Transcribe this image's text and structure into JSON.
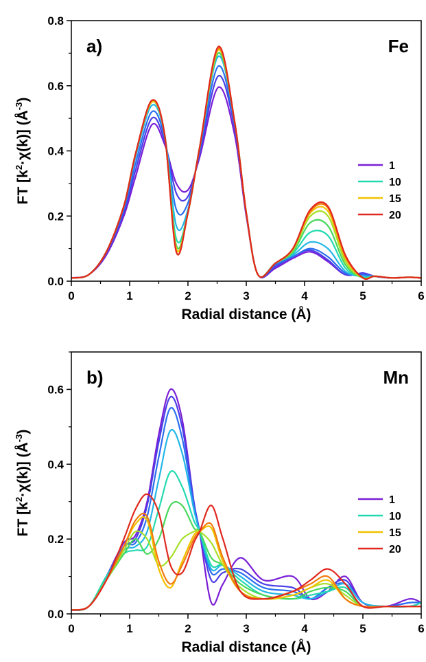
{
  "chart_data": [
    {
      "type": "line",
      "panel_label": "a)",
      "element_label": "Fe",
      "xlabel": "Radial distance (Å)",
      "ylabel_parts": [
        "FT [k",
        "2",
        "·χ(k)] (Å",
        "-3",
        ")"
      ],
      "xlim": [
        0,
        6
      ],
      "ylim": [
        0,
        0.8
      ],
      "x_ticks": [
        0,
        1,
        2,
        3,
        4,
        5,
        6
      ],
      "x_tick_labels": [
        "0",
        "1",
        "2",
        "3",
        "4",
        "5",
        "6"
      ],
      "y_ticks": [
        0.0,
        0.2,
        0.4,
        0.6,
        0.8
      ],
      "y_tick_labels": [
        "0.0",
        "0.2",
        "0.4",
        "0.6",
        "0.8"
      ],
      "grid": false,
      "legend_position": "right",
      "legend": [
        {
          "label": "1",
          "color": "#7a1fd6"
        },
        {
          "label": "10",
          "color": "#21d9b0"
        },
        {
          "label": "15",
          "color": "#f2c200"
        },
        {
          "label": "20",
          "color": "#e0281e"
        }
      ],
      "x": [
        0,
        0.3,
        0.6,
        0.9,
        1.1,
        1.38,
        1.6,
        1.8,
        2.0,
        2.2,
        2.52,
        2.8,
        3.0,
        3.2,
        3.5,
        3.8,
        4.1,
        4.4,
        4.7,
        5.0,
        5.2,
        5.5,
        5.8,
        6.0
      ],
      "series": [
        {
          "name": "1",
          "color": "#7a1fd6",
          "values": [
            0.01,
            0.02,
            0.08,
            0.2,
            0.32,
            0.48,
            0.42,
            0.3,
            0.28,
            0.38,
            0.595,
            0.45,
            0.2,
            0.02,
            0.04,
            0.07,
            0.09,
            0.06,
            0.02,
            0.025,
            0.015,
            0.01,
            0.012,
            0.01
          ]
        },
        {
          "color": "#4a3ee6",
          "values": [
            0.01,
            0.02,
            0.085,
            0.21,
            0.34,
            0.5,
            0.43,
            0.27,
            0.26,
            0.39,
            0.63,
            0.47,
            0.21,
            0.02,
            0.045,
            0.075,
            0.095,
            0.065,
            0.02,
            0.025,
            0.015,
            0.01,
            0.012,
            0.01
          ]
        },
        {
          "color": "#2a6ff0",
          "values": [
            0.01,
            0.02,
            0.09,
            0.22,
            0.36,
            0.52,
            0.44,
            0.22,
            0.24,
            0.4,
            0.66,
            0.48,
            0.21,
            0.02,
            0.05,
            0.075,
            0.1,
            0.075,
            0.025,
            0.02,
            0.015,
            0.01,
            0.012,
            0.01
          ]
        },
        {
          "color": "#22b6e6",
          "values": [
            0.01,
            0.02,
            0.09,
            0.23,
            0.38,
            0.54,
            0.45,
            0.17,
            0.22,
            0.41,
            0.69,
            0.49,
            0.21,
            0.02,
            0.055,
            0.08,
            0.12,
            0.1,
            0.03,
            0.015,
            0.015,
            0.01,
            0.012,
            0.01
          ]
        },
        {
          "name": "10",
          "color": "#21d9b0",
          "values": [
            0.01,
            0.02,
            0.09,
            0.23,
            0.39,
            0.55,
            0.45,
            0.13,
            0.21,
            0.41,
            0.7,
            0.49,
            0.21,
            0.02,
            0.055,
            0.085,
            0.15,
            0.14,
            0.04,
            0.012,
            0.015,
            0.01,
            0.012,
            0.01
          ]
        },
        {
          "color": "#49d85c",
          "values": [
            0.01,
            0.02,
            0.09,
            0.23,
            0.39,
            0.55,
            0.45,
            0.11,
            0.21,
            0.41,
            0.7,
            0.49,
            0.21,
            0.02,
            0.055,
            0.09,
            0.18,
            0.17,
            0.05,
            0.01,
            0.015,
            0.01,
            0.012,
            0.01
          ]
        },
        {
          "color": "#a6e02a",
          "values": [
            0.01,
            0.02,
            0.09,
            0.23,
            0.39,
            0.55,
            0.45,
            0.1,
            0.21,
            0.41,
            0.71,
            0.49,
            0.21,
            0.02,
            0.055,
            0.095,
            0.2,
            0.2,
            0.06,
            0.01,
            0.015,
            0.01,
            0.012,
            0.01
          ]
        },
        {
          "name": "15",
          "color": "#f2c200",
          "values": [
            0.01,
            0.02,
            0.09,
            0.23,
            0.39,
            0.55,
            0.45,
            0.1,
            0.21,
            0.41,
            0.71,
            0.49,
            0.21,
            0.02,
            0.055,
            0.1,
            0.21,
            0.215,
            0.07,
            0.01,
            0.015,
            0.01,
            0.012,
            0.01
          ]
        },
        {
          "color": "#f27a10",
          "values": [
            0.01,
            0.02,
            0.09,
            0.23,
            0.39,
            0.555,
            0.45,
            0.09,
            0.21,
            0.41,
            0.715,
            0.49,
            0.21,
            0.02,
            0.055,
            0.1,
            0.215,
            0.225,
            0.075,
            0.01,
            0.015,
            0.01,
            0.012,
            0.01
          ]
        },
        {
          "name": "20",
          "color": "#e0281e",
          "values": [
            0.01,
            0.02,
            0.09,
            0.23,
            0.39,
            0.555,
            0.45,
            0.09,
            0.21,
            0.41,
            0.72,
            0.49,
            0.21,
            0.02,
            0.055,
            0.1,
            0.22,
            0.23,
            0.08,
            0.01,
            0.015,
            0.01,
            0.012,
            0.01
          ]
        }
      ]
    },
    {
      "type": "line",
      "panel_label": "b)",
      "element_label": "Mn",
      "xlabel": "Radial distance (Å)",
      "ylabel_parts": [
        "FT [k",
        "2",
        "·χ(k)] (Å",
        "-3",
        ")"
      ],
      "xlim": [
        0,
        6
      ],
      "ylim": [
        0,
        0.7
      ],
      "x_ticks": [
        0,
        1,
        2,
        3,
        4,
        5,
        6
      ],
      "x_tick_labels": [
        "0",
        "1",
        "2",
        "3",
        "4",
        "5",
        "6"
      ],
      "y_ticks": [
        0.0,
        0.2,
        0.4,
        0.6
      ],
      "y_tick_labels": [
        "0.0",
        "0.2",
        "0.4",
        "0.6"
      ],
      "grid": false,
      "legend_position": "right",
      "legend": [
        {
          "label": "1",
          "color": "#7a1fd6"
        },
        {
          "label": "10",
          "color": "#21d9b0"
        },
        {
          "label": "15",
          "color": "#f2c200"
        },
        {
          "label": "20",
          "color": "#e0281e"
        }
      ],
      "x": [
        0,
        0.3,
        0.6,
        0.9,
        1.1,
        1.3,
        1.5,
        1.7,
        1.9,
        2.1,
        2.2,
        2.4,
        2.6,
        2.9,
        3.3,
        3.8,
        4.1,
        4.4,
        4.7,
        5.0,
        5.4,
        5.8,
        6.0
      ],
      "series": [
        {
          "name": "1",
          "color": "#7a1fd6",
          "values": [
            0.01,
            0.02,
            0.1,
            0.19,
            0.21,
            0.3,
            0.48,
            0.6,
            0.52,
            0.3,
            0.22,
            0.03,
            0.08,
            0.15,
            0.09,
            0.1,
            0.04,
            0.06,
            0.1,
            0.03,
            0.02,
            0.04,
            0.03
          ]
        },
        {
          "color": "#4a3ee6",
          "values": [
            0.01,
            0.02,
            0.1,
            0.18,
            0.2,
            0.29,
            0.46,
            0.58,
            0.5,
            0.3,
            0.22,
            0.09,
            0.11,
            0.12,
            0.08,
            0.07,
            0.04,
            0.07,
            0.09,
            0.03,
            0.02,
            0.03,
            0.03
          ]
        },
        {
          "color": "#2a6ff0",
          "values": [
            0.01,
            0.02,
            0.1,
            0.18,
            0.19,
            0.26,
            0.42,
            0.55,
            0.47,
            0.29,
            0.22,
            0.11,
            0.12,
            0.11,
            0.07,
            0.06,
            0.04,
            0.07,
            0.08,
            0.03,
            0.02,
            0.03,
            0.03
          ]
        },
        {
          "color": "#22b6e6",
          "values": [
            0.01,
            0.02,
            0.1,
            0.17,
            0.18,
            0.22,
            0.36,
            0.49,
            0.43,
            0.28,
            0.22,
            0.12,
            0.13,
            0.1,
            0.06,
            0.05,
            0.04,
            0.06,
            0.08,
            0.03,
            0.02,
            0.02,
            0.03
          ]
        },
        {
          "name": "10",
          "color": "#21d9b0",
          "values": [
            0.01,
            0.02,
            0.1,
            0.16,
            0.17,
            0.18,
            0.28,
            0.38,
            0.34,
            0.25,
            0.22,
            0.13,
            0.13,
            0.09,
            0.05,
            0.04,
            0.05,
            0.06,
            0.07,
            0.02,
            0.02,
            0.02,
            0.03
          ]
        },
        {
          "color": "#49d85c",
          "values": [
            0.01,
            0.02,
            0.09,
            0.16,
            0.2,
            0.16,
            0.2,
            0.29,
            0.29,
            0.23,
            0.22,
            0.15,
            0.13,
            0.08,
            0.05,
            0.04,
            0.06,
            0.07,
            0.06,
            0.02,
            0.02,
            0.02,
            0.02
          ]
        },
        {
          "color": "#a6e02a",
          "values": [
            0.01,
            0.02,
            0.09,
            0.17,
            0.22,
            0.2,
            0.13,
            0.15,
            0.2,
            0.22,
            0.22,
            0.19,
            0.13,
            0.07,
            0.04,
            0.05,
            0.07,
            0.08,
            0.05,
            0.02,
            0.02,
            0.02,
            0.02
          ]
        },
        {
          "name": "15",
          "color": "#f2c200",
          "values": [
            0.01,
            0.02,
            0.09,
            0.18,
            0.24,
            0.25,
            0.12,
            0.07,
            0.14,
            0.21,
            0.22,
            0.23,
            0.14,
            0.06,
            0.04,
            0.05,
            0.07,
            0.09,
            0.04,
            0.02,
            0.02,
            0.02,
            0.02
          ]
        },
        {
          "color": "#f27a10",
          "values": [
            0.01,
            0.02,
            0.09,
            0.18,
            0.25,
            0.26,
            0.14,
            0.08,
            0.13,
            0.2,
            0.22,
            0.24,
            0.15,
            0.06,
            0.04,
            0.06,
            0.08,
            0.1,
            0.04,
            0.02,
            0.02,
            0.02,
            0.02
          ]
        },
        {
          "name": "20",
          "color": "#e0281e",
          "values": [
            0.01,
            0.02,
            0.09,
            0.2,
            0.28,
            0.32,
            0.27,
            0.13,
            0.11,
            0.19,
            0.22,
            0.29,
            0.2,
            0.06,
            0.04,
            0.06,
            0.09,
            0.12,
            0.08,
            0.02,
            0.02,
            0.02,
            0.02
          ]
        }
      ]
    }
  ]
}
